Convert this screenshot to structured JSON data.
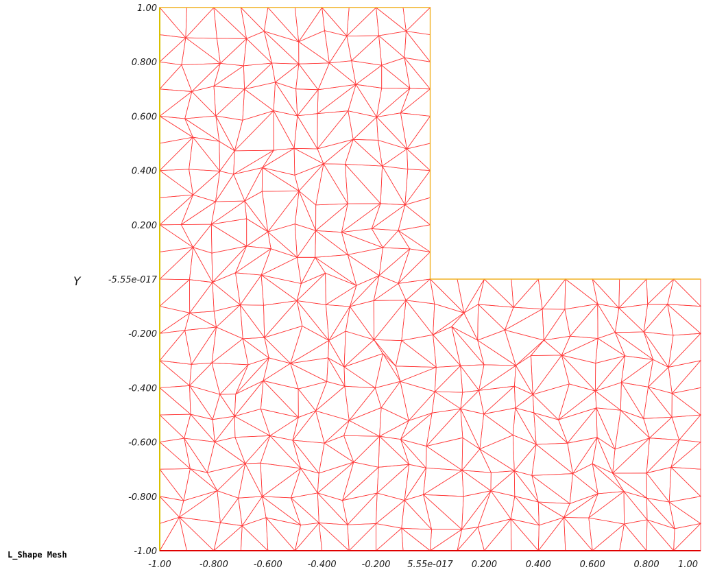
{
  "title": "L_Shape Mesh",
  "axis": {
    "y_name": "Y",
    "x_ticks": [
      {
        "value": -1.0,
        "label": "-1.00"
      },
      {
        "value": -0.8,
        "label": "-0.800"
      },
      {
        "value": -0.6,
        "label": "-0.600"
      },
      {
        "value": -0.4,
        "label": "-0.400"
      },
      {
        "value": -0.2,
        "label": "-0.200"
      },
      {
        "value": 0.0,
        "label": "5.55e-017"
      },
      {
        "value": 0.2,
        "label": "0.200"
      },
      {
        "value": 0.4,
        "label": "0.400"
      },
      {
        "value": 0.6,
        "label": "0.600"
      },
      {
        "value": 0.8,
        "label": "0.800"
      },
      {
        "value": 1.0,
        "label": "1.00"
      }
    ],
    "y_ticks": [
      {
        "value": 1.0,
        "label": "1.00"
      },
      {
        "value": 0.8,
        "label": "0.800"
      },
      {
        "value": 0.6,
        "label": "0.600"
      },
      {
        "value": 0.4,
        "label": "0.400"
      },
      {
        "value": 0.2,
        "label": "0.200"
      },
      {
        "value": 0.0,
        "label": "-5.55e-017"
      },
      {
        "value": -0.2,
        "label": "-0.200"
      },
      {
        "value": -0.4,
        "label": "-0.400"
      },
      {
        "value": -0.6,
        "label": "-0.600"
      },
      {
        "value": -0.8,
        "label": "-0.800"
      },
      {
        "value": -1.0,
        "label": "-1.00"
      }
    ]
  },
  "domain": {
    "shape": "L",
    "outline": [
      [
        -1,
        -1
      ],
      [
        1,
        -1
      ],
      [
        1,
        0
      ],
      [
        0,
        0
      ],
      [
        0,
        1
      ],
      [
        -1,
        1
      ]
    ]
  },
  "colors": {
    "mesh": "#ff3b3b",
    "boundary_top": "#f0b020",
    "boundary_left": "#d8c000",
    "boundary_bottom": "#e00000"
  }
}
